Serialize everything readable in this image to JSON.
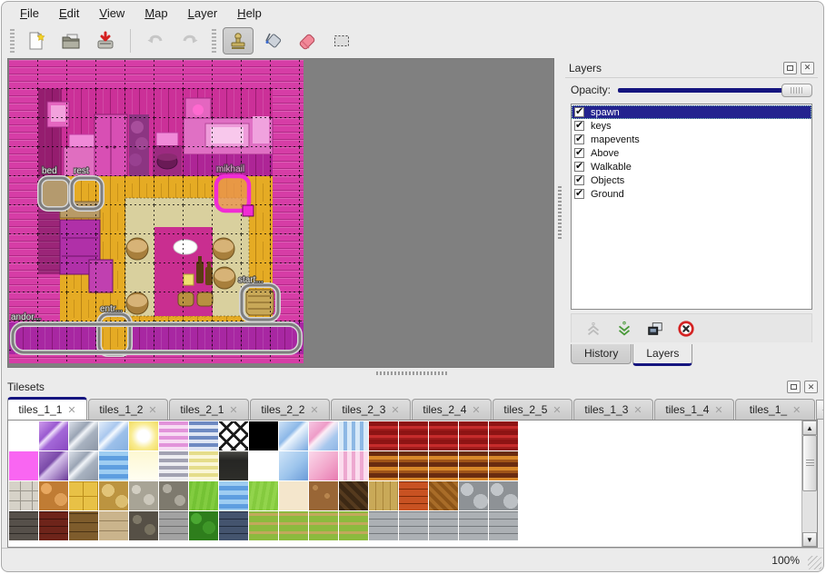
{
  "window": {
    "zoom_level": "100%"
  },
  "menubar": {
    "items": [
      "File",
      "Edit",
      "View",
      "Map",
      "Layer",
      "Help"
    ]
  },
  "toolbar": {
    "buttons": [
      "new-file-icon",
      "open-icon",
      "save-icon",
      "undo-icon",
      "redo-icon",
      "stamp-tool-icon",
      "bucket-fill-icon",
      "eraser-icon",
      "rect-select-icon"
    ],
    "active_tool": "stamp-tool",
    "disabled": [
      "undo",
      "redo"
    ]
  },
  "map": {
    "objects": [
      {
        "label": "bed"
      },
      {
        "label": "rest"
      },
      {
        "label": "mikhail",
        "selected": true
      },
      {
        "label": "start..."
      },
      {
        "label": "entr..."
      },
      {
        "label": "andor..."
      }
    ]
  },
  "layers_panel": {
    "title": "Layers",
    "opacity_label": "Opacity:",
    "opacity_value": 100,
    "items": [
      {
        "name": "spawn",
        "checked": true,
        "selected": true
      },
      {
        "name": "keys",
        "checked": true,
        "selected": false
      },
      {
        "name": "mapevents",
        "checked": true,
        "selected": false
      },
      {
        "name": "Above",
        "checked": true,
        "selected": false
      },
      {
        "name": "Walkable",
        "checked": true,
        "selected": false
      },
      {
        "name": "Objects",
        "checked": true,
        "selected": false
      },
      {
        "name": "Ground",
        "checked": true,
        "selected": false
      }
    ],
    "buttons": [
      "raise-layer-icon",
      "lower-layer-icon",
      "duplicate-layer-icon",
      "delete-layer-icon"
    ],
    "tabs": [
      {
        "label": "History",
        "active": false
      },
      {
        "label": "Layers",
        "active": true
      }
    ]
  },
  "tilesets_panel": {
    "title": "Tilesets",
    "tabs": [
      {
        "label": "tiles_1_1",
        "active": true
      },
      {
        "label": "tiles_1_2",
        "active": false
      },
      {
        "label": "tiles_2_1",
        "active": false
      },
      {
        "label": "tiles_2_2",
        "active": false
      },
      {
        "label": "tiles_2_3",
        "active": false
      },
      {
        "label": "tiles_2_4",
        "active": false
      },
      {
        "label": "tiles_2_5",
        "active": false
      },
      {
        "label": "tiles_1_3",
        "active": false
      },
      {
        "label": "tiles_1_4",
        "active": false
      },
      {
        "label": "tiles_1_",
        "active": false
      }
    ],
    "close_glyph": "✕",
    "tiles": [
      [
        "white",
        "glass-purple",
        "glass-gray",
        "glass-blue",
        "glow-yellow",
        "stripe-pink",
        "stripe-blue",
        "lattice",
        "black",
        "glass-blue2",
        "glass-pinkblue",
        "icicle-blue",
        "curtain-red",
        "curtain-red",
        "curtain-red",
        "curtain-red",
        "curtain-red"
      ],
      [
        "magenta",
        "glass-purple2",
        "glass-gray",
        "water",
        "pale-yellow",
        "stripe-gray",
        "stripe-yellow",
        "sign-dark",
        "white",
        "panel-blue",
        "panel-pink",
        "icicle-pink",
        "stripe-brown",
        "stripe-brown",
        "stripe-brown",
        "stripe-brown",
        "stripe-brown"
      ],
      [
        "stone-path",
        "cobble-orange",
        "tile-yellow",
        "cobble-tan",
        "pebble-gray",
        "pebble-dark",
        "grass-green",
        "water",
        "grass2",
        "sand",
        "dirt",
        "shingle-dark",
        "wood-tan",
        "brick-orange",
        "herringbone",
        "stones-gray",
        "stones-gray"
      ],
      [
        "brick-darkgray",
        "brick-darkred",
        "brick-brown",
        "wall-tan",
        "wall-darkpebble",
        "brick-gray",
        "hedge-green",
        "brick-blue",
        "grassflower",
        "grassflower",
        "grassflower",
        "grassflower",
        "stonebrick",
        "stonebrick",
        "stonebrick",
        "stonebrick",
        "stonebrick"
      ]
    ]
  },
  "colors": {
    "accent_navy": "#15157f",
    "selection_blue": "#23238f",
    "map_wall_pink": "#d63da6",
    "map_floor_gold": "#e5ab24",
    "object_selected_pink": "#f02cd4",
    "delete_red": "#d42424"
  }
}
